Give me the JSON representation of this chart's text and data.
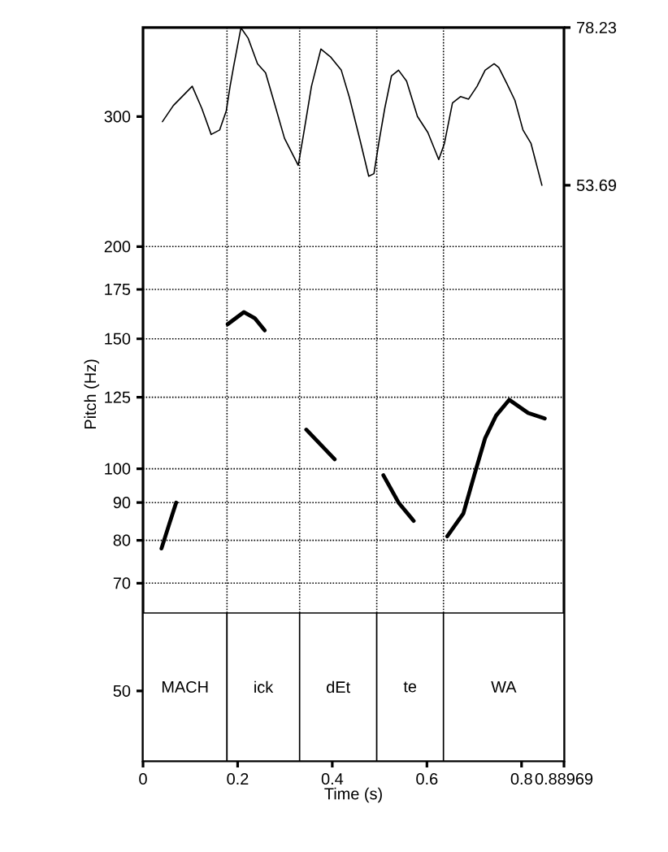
{
  "chart_data": {
    "type": "line",
    "xlabel": "Time (s)",
    "ylabel": "Pitch (Hz)",
    "log": "y",
    "xlim": [
      0,
      0.88969
    ],
    "xticks": [
      0,
      0.2,
      0.4,
      0.6,
      0.8,
      0.88969
    ],
    "ylim": [
      40.2,
      396
    ],
    "yticks": [
      50,
      70,
      80,
      90,
      100,
      125,
      150,
      175,
      200,
      300
    ],
    "y2lim": [
      -35.9,
      78.23
    ],
    "y2ticks": [
      53.69,
      78.23
    ],
    "grid": "y",
    "marker": "none",
    "bands": [
      {
        "axis": "x",
        "from": 0,
        "to": 0.1775,
        "label": "MACH",
        "color": "#ffffff"
      },
      {
        "axis": "x",
        "from": 0.1775,
        "to": 0.331,
        "label": "ick",
        "color": "#ffffff"
      },
      {
        "axis": "x",
        "from": 0.331,
        "to": 0.494,
        "label": "dEt",
        "color": "#ffffff"
      },
      {
        "axis": "x",
        "from": 0.494,
        "to": 0.635,
        "label": "te",
        "color": "#ffffff"
      },
      {
        "axis": "x",
        "from": 0.635,
        "to": 0.88969,
        "label": "WA",
        "color": "#ffffff"
      }
    ],
    "ref_lines": [
      {
        "axis": "x",
        "value": 0.1775,
        "line_style": "dotted"
      },
      {
        "axis": "x",
        "value": 0.331,
        "line_style": "dotted"
      },
      {
        "axis": "x",
        "value": 0.494,
        "line_style": "dotted"
      },
      {
        "axis": "x",
        "value": 0.635,
        "line_style": "dotted"
      }
    ],
    "series": [
      {
        "color": "#000000",
        "x": [
          0.039,
          0.055,
          0.07,
          0.12,
          0.179,
          0.213,
          0.236,
          0.257,
          0.3,
          0.345,
          0.405,
          0.45,
          0.508,
          0.54,
          0.572,
          0.6,
          0.643,
          0.677,
          0.7,
          0.723,
          0.746,
          0.774,
          0.814,
          0.849
        ],
        "values": [
          78,
          84,
          90,
          null,
          157,
          163,
          160,
          154,
          null,
          113,
          103,
          null,
          98,
          90,
          85,
          null,
          81,
          87,
          98,
          110,
          118,
          124,
          119,
          117
        ]
      },
      {
        "axis": "y2",
        "color": "#000000",
        "x": [
          0.041,
          0.064,
          0.104,
          0.124,
          0.144,
          0.162,
          0.176,
          0.184,
          0.192,
          0.207,
          0.222,
          0.242,
          0.259,
          0.276,
          0.299,
          0.328,
          0.339,
          0.356,
          0.376,
          0.396,
          0.419,
          0.436,
          0.459,
          0.477,
          0.488,
          0.499,
          0.511,
          0.525,
          0.54,
          0.557,
          0.58,
          0.602,
          0.625,
          0.637,
          0.654,
          0.671,
          0.688,
          0.706,
          0.723,
          0.742,
          0.752,
          0.769,
          0.786,
          0.803,
          0.82,
          0.843
        ],
        "values": [
          63.6,
          66.1,
          69.1,
          65.7,
          61.6,
          62.3,
          65.3,
          69.1,
          72.4,
          78.2,
          76.6,
          72.6,
          71.2,
          66.9,
          61,
          56.8,
          61.5,
          69.1,
          74.9,
          73.7,
          71.6,
          67.4,
          60.6,
          55.1,
          55.5,
          60.6,
          65.7,
          70.7,
          71.6,
          69.9,
          64.4,
          61.9,
          57.7,
          60.2,
          66.5,
          67.5,
          67.1,
          69.1,
          71.6,
          72.6,
          72,
          69.5,
          66.9,
          62.3,
          60.2,
          53.7
        ]
      }
    ]
  }
}
